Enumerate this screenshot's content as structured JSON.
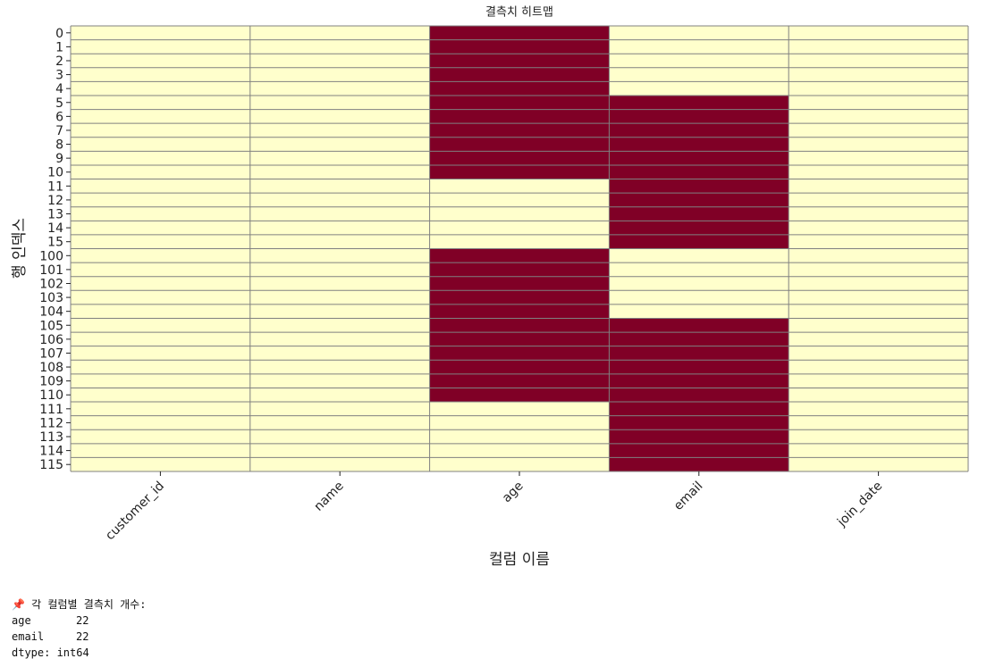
{
  "chart_data": {
    "type": "heatmap",
    "title": "결측치 히트맵",
    "x_label": "컬럼 이름",
    "y_label": "행 인덱스",
    "columns": [
      "customer_id",
      "name",
      "age",
      "email",
      "join_date"
    ],
    "rows": [
      "0",
      "1",
      "2",
      "3",
      "4",
      "5",
      "6",
      "7",
      "8",
      "9",
      "10",
      "11",
      "12",
      "13",
      "14",
      "15",
      "100",
      "101",
      "102",
      "103",
      "104",
      "105",
      "106",
      "107",
      "108",
      "109",
      "110",
      "111",
      "112",
      "113",
      "114",
      "115"
    ],
    "values": [
      [
        0,
        0,
        1,
        0,
        0
      ],
      [
        0,
        0,
        1,
        0,
        0
      ],
      [
        0,
        0,
        1,
        0,
        0
      ],
      [
        0,
        0,
        1,
        0,
        0
      ],
      [
        0,
        0,
        1,
        0,
        0
      ],
      [
        0,
        0,
        1,
        1,
        0
      ],
      [
        0,
        0,
        1,
        1,
        0
      ],
      [
        0,
        0,
        1,
        1,
        0
      ],
      [
        0,
        0,
        1,
        1,
        0
      ],
      [
        0,
        0,
        1,
        1,
        0
      ],
      [
        0,
        0,
        1,
        1,
        0
      ],
      [
        0,
        0,
        0,
        1,
        0
      ],
      [
        0,
        0,
        0,
        1,
        0
      ],
      [
        0,
        0,
        0,
        1,
        0
      ],
      [
        0,
        0,
        0,
        1,
        0
      ],
      [
        0,
        0,
        0,
        1,
        0
      ],
      [
        0,
        0,
        1,
        0,
        0
      ],
      [
        0,
        0,
        1,
        0,
        0
      ],
      [
        0,
        0,
        1,
        0,
        0
      ],
      [
        0,
        0,
        1,
        0,
        0
      ],
      [
        0,
        0,
        1,
        0,
        0
      ],
      [
        0,
        0,
        1,
        1,
        0
      ],
      [
        0,
        0,
        1,
        1,
        0
      ],
      [
        0,
        0,
        1,
        1,
        0
      ],
      [
        0,
        0,
        1,
        1,
        0
      ],
      [
        0,
        0,
        1,
        1,
        0
      ],
      [
        0,
        0,
        1,
        1,
        0
      ],
      [
        0,
        0,
        0,
        1,
        0
      ],
      [
        0,
        0,
        0,
        1,
        0
      ],
      [
        0,
        0,
        0,
        1,
        0
      ],
      [
        0,
        0,
        0,
        1,
        0
      ],
      [
        0,
        0,
        0,
        1,
        0
      ]
    ],
    "colors": [
      "#ffffcc",
      "#800026"
    ]
  },
  "output": {
    "header": "📌 각 컬럼별 결측치 개수:",
    "rows": [
      {
        "name": "age",
        "count": 22
      },
      {
        "name": "email",
        "count": 22
      }
    ],
    "footer": "dtype: int64"
  }
}
